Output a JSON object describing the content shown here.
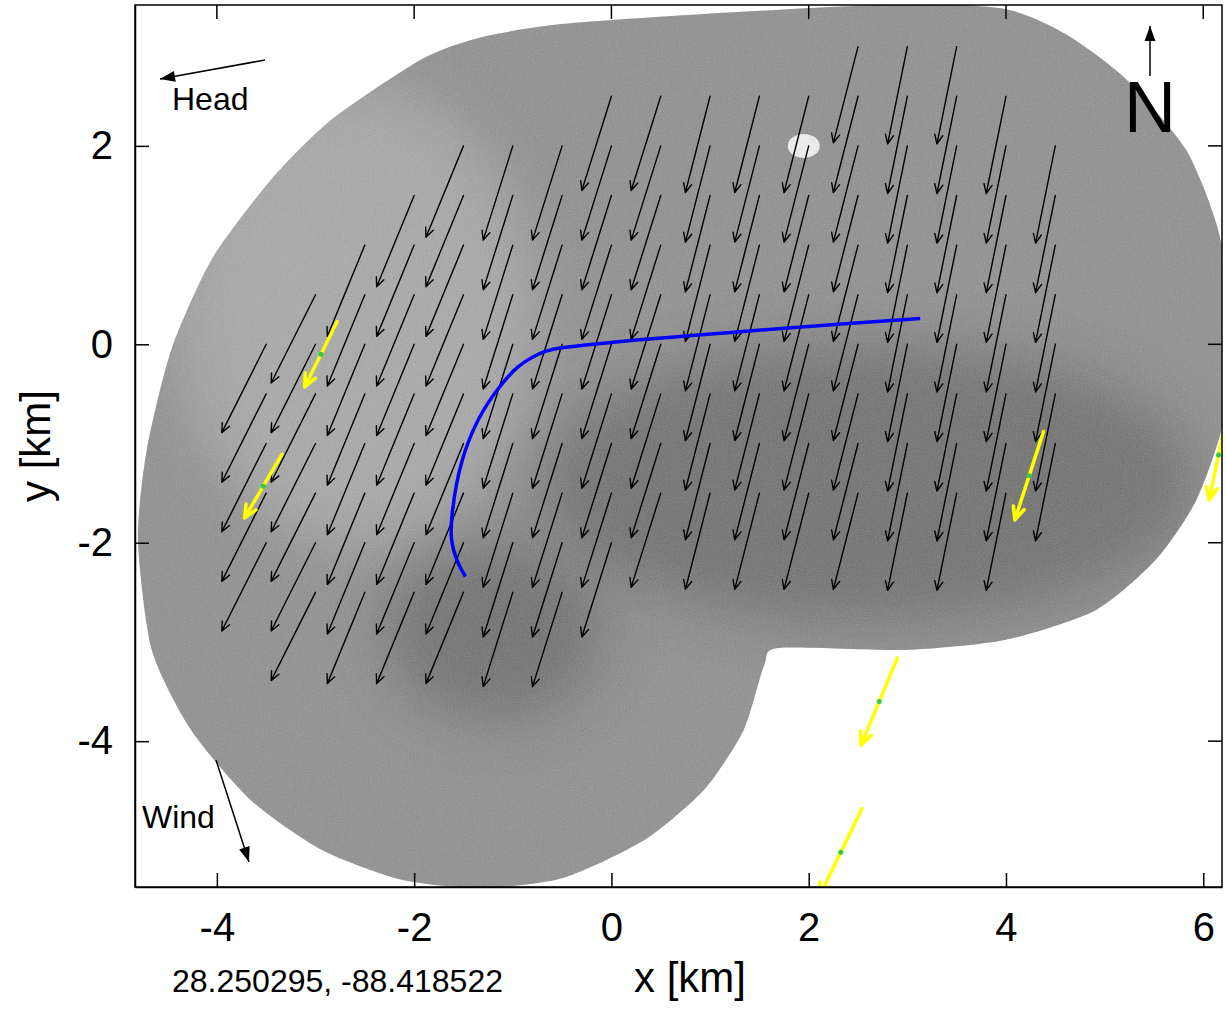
{
  "chart_data": {
    "type": "quiver",
    "xlabel": "x [km]",
    "ylabel": "y [km]",
    "xlim": [
      -4.83,
      6.19
    ],
    "ylim": [
      -5.47,
      3.42
    ],
    "xticks": [
      -4,
      -2,
      0,
      2,
      4,
      6
    ],
    "yticks": [
      -4,
      -2,
      0,
      2
    ],
    "grid": false,
    "heading_label": "Head",
    "wind_label": "Wind",
    "north_label": "N",
    "location_label": "28.250295, -88.418522",
    "series": [
      {
        "type": "quiver",
        "color": "#000000",
        "vectors": [
          [
            2.5,
            3,
            -0.25,
            -0.97
          ],
          [
            3,
            3,
            -0.2,
            -0.98
          ],
          [
            3.5,
            3,
            -0.2,
            -0.98
          ],
          [
            0,
            2.5,
            -0.3,
            -0.95
          ],
          [
            0.5,
            2.5,
            -0.3,
            -0.95
          ],
          [
            1,
            2.5,
            -0.25,
            -0.97
          ],
          [
            1.5,
            2.5,
            -0.25,
            -0.97
          ],
          [
            2,
            2.5,
            -0.25,
            -0.97
          ],
          [
            2.5,
            2.5,
            -0.25,
            -0.97
          ],
          [
            3,
            2.5,
            -0.2,
            -0.98
          ],
          [
            3.5,
            2.5,
            -0.2,
            -0.98
          ],
          [
            4,
            2.5,
            -0.2,
            -0.98
          ],
          [
            -1.5,
            2,
            -0.38,
            -0.92
          ],
          [
            -1,
            2,
            -0.3,
            -0.95
          ],
          [
            -0.5,
            2,
            -0.3,
            -0.95
          ],
          [
            0,
            2,
            -0.3,
            -0.95
          ],
          [
            0.5,
            2,
            -0.3,
            -0.95
          ],
          [
            1,
            2,
            -0.25,
            -0.97
          ],
          [
            1.5,
            2,
            -0.25,
            -0.97
          ],
          [
            2,
            2,
            -0.25,
            -0.97
          ],
          [
            2.5,
            2,
            -0.25,
            -0.97
          ],
          [
            3,
            2,
            -0.2,
            -0.98
          ],
          [
            3.5,
            2,
            -0.2,
            -0.98
          ],
          [
            4,
            2,
            -0.2,
            -0.98
          ],
          [
            4.5,
            2,
            -0.2,
            -0.98
          ],
          [
            -2,
            1.5,
            -0.38,
            -0.92
          ],
          [
            -1.5,
            1.5,
            -0.38,
            -0.92
          ],
          [
            -1,
            1.5,
            -0.3,
            -0.95
          ],
          [
            -0.5,
            1.5,
            -0.3,
            -0.95
          ],
          [
            0,
            1.5,
            -0.3,
            -0.95
          ],
          [
            0.5,
            1.5,
            -0.3,
            -0.95
          ],
          [
            1,
            1.5,
            -0.25,
            -0.97
          ],
          [
            1.5,
            1.5,
            -0.25,
            -0.97
          ],
          [
            2,
            1.5,
            -0.25,
            -0.97
          ],
          [
            2.5,
            1.5,
            -0.25,
            -0.97
          ],
          [
            3,
            1.5,
            -0.2,
            -0.98
          ],
          [
            3.5,
            1.5,
            -0.2,
            -0.98
          ],
          [
            4,
            1.5,
            -0.2,
            -0.98
          ],
          [
            4.5,
            1.5,
            -0.2,
            -0.98
          ],
          [
            -2.5,
            1,
            -0.38,
            -0.92
          ],
          [
            -2,
            1,
            -0.38,
            -0.92
          ],
          [
            -1.5,
            1,
            -0.38,
            -0.92
          ],
          [
            -1,
            1,
            -0.3,
            -0.95
          ],
          [
            -0.5,
            1,
            -0.3,
            -0.95
          ],
          [
            0,
            1,
            -0.3,
            -0.95
          ],
          [
            0.5,
            1,
            -0.3,
            -0.95
          ],
          [
            1,
            1,
            -0.25,
            -0.97
          ],
          [
            1.5,
            1,
            -0.25,
            -0.97
          ],
          [
            2,
            1,
            -0.25,
            -0.97
          ],
          [
            2.5,
            1,
            -0.25,
            -0.97
          ],
          [
            3,
            1,
            -0.2,
            -0.98
          ],
          [
            3.5,
            1,
            -0.2,
            -0.98
          ],
          [
            4,
            1,
            -0.2,
            -0.98
          ],
          [
            4.5,
            1,
            -0.2,
            -0.98
          ],
          [
            -3,
            0.5,
            -0.45,
            -0.89
          ],
          [
            -2.5,
            0.5,
            -0.38,
            -0.92
          ],
          [
            -2,
            0.5,
            -0.38,
            -0.92
          ],
          [
            -1.5,
            0.5,
            -0.38,
            -0.92
          ],
          [
            -1,
            0.5,
            -0.3,
            -0.95
          ],
          [
            -0.5,
            0.5,
            -0.3,
            -0.95
          ],
          [
            0,
            0.5,
            -0.3,
            -0.95
          ],
          [
            0.5,
            0.5,
            -0.3,
            -0.95
          ],
          [
            1,
            0.5,
            -0.25,
            -0.97
          ],
          [
            1.5,
            0.5,
            -0.25,
            -0.97
          ],
          [
            2,
            0.5,
            -0.25,
            -0.97
          ],
          [
            2.5,
            0.5,
            -0.25,
            -0.97
          ],
          [
            3,
            0.5,
            -0.2,
            -0.98
          ],
          [
            3.5,
            0.5,
            -0.2,
            -0.98
          ],
          [
            4,
            0.5,
            -0.2,
            -0.98
          ],
          [
            4.5,
            0.5,
            -0.2,
            -0.98
          ],
          [
            -3.5,
            0,
            -0.45,
            -0.89
          ],
          [
            -3,
            0,
            -0.45,
            -0.89
          ],
          [
            -2.5,
            0,
            -0.38,
            -0.92
          ],
          [
            -2,
            0,
            -0.38,
            -0.92
          ],
          [
            -1.5,
            0,
            -0.38,
            -0.92
          ],
          [
            -1,
            0,
            -0.3,
            -0.95
          ],
          [
            -0.5,
            0,
            -0.3,
            -0.95
          ],
          [
            0,
            0,
            -0.3,
            -0.95
          ],
          [
            0.5,
            0,
            -0.3,
            -0.95
          ],
          [
            1,
            0,
            -0.25,
            -0.97
          ],
          [
            1.5,
            0,
            -0.25,
            -0.97
          ],
          [
            2,
            0,
            -0.25,
            -0.97
          ],
          [
            2.5,
            0,
            -0.25,
            -0.97
          ],
          [
            3,
            0,
            -0.2,
            -0.98
          ],
          [
            3.5,
            0,
            -0.2,
            -0.98
          ],
          [
            4,
            0,
            -0.2,
            -0.98
          ],
          [
            4.5,
            0,
            -0.2,
            -0.98
          ],
          [
            -3.5,
            -0.5,
            -0.45,
            -0.89
          ],
          [
            -3,
            -0.5,
            -0.45,
            -0.89
          ],
          [
            -2.5,
            -0.5,
            -0.38,
            -0.92
          ],
          [
            -2,
            -0.5,
            -0.38,
            -0.92
          ],
          [
            -1.5,
            -0.5,
            -0.38,
            -0.92
          ],
          [
            -1,
            -0.5,
            -0.3,
            -0.95
          ],
          [
            -0.5,
            -0.5,
            -0.3,
            -0.95
          ],
          [
            0,
            -0.5,
            -0.3,
            -0.95
          ],
          [
            0.5,
            -0.5,
            -0.3,
            -0.95
          ],
          [
            1,
            -0.5,
            -0.25,
            -0.97
          ],
          [
            1.5,
            -0.5,
            -0.25,
            -0.97
          ],
          [
            2,
            -0.5,
            -0.25,
            -0.97
          ],
          [
            2.5,
            -0.5,
            -0.25,
            -0.97
          ],
          [
            3,
            -0.5,
            -0.2,
            -0.98
          ],
          [
            3.5,
            -0.5,
            -0.2,
            -0.98
          ],
          [
            4,
            -0.5,
            -0.2,
            -0.98
          ],
          [
            4.5,
            -0.5,
            -0.2,
            -0.98
          ],
          [
            -3.5,
            -1,
            -0.45,
            -0.89
          ],
          [
            -3,
            -1,
            -0.45,
            -0.89
          ],
          [
            -2.5,
            -1,
            -0.38,
            -0.92
          ],
          [
            -2,
            -1,
            -0.38,
            -0.92
          ],
          [
            -1.5,
            -1,
            -0.38,
            -0.92
          ],
          [
            -1,
            -1,
            -0.3,
            -0.95
          ],
          [
            -0.5,
            -1,
            -0.3,
            -0.95
          ],
          [
            0,
            -1,
            -0.3,
            -0.95
          ],
          [
            0.5,
            -1,
            -0.3,
            -0.95
          ],
          [
            1,
            -1,
            -0.25,
            -0.97
          ],
          [
            1.5,
            -1,
            -0.25,
            -0.97
          ],
          [
            2,
            -1,
            -0.25,
            -0.97
          ],
          [
            2.5,
            -1,
            -0.25,
            -0.97
          ],
          [
            3,
            -1,
            -0.2,
            -0.98
          ],
          [
            3.5,
            -1,
            -0.2,
            -0.98
          ],
          [
            4,
            -1,
            -0.2,
            -0.98
          ],
          [
            4.5,
            -1,
            -0.2,
            -0.98
          ],
          [
            -3.5,
            -1.5,
            -0.45,
            -0.89
          ],
          [
            -3,
            -1.5,
            -0.45,
            -0.89
          ],
          [
            -2.5,
            -1.5,
            -0.38,
            -0.92
          ],
          [
            -2,
            -1.5,
            -0.38,
            -0.92
          ],
          [
            -1.5,
            -1.5,
            -0.38,
            -0.92
          ],
          [
            -1,
            -1.5,
            -0.3,
            -0.95
          ],
          [
            -0.5,
            -1.5,
            -0.3,
            -0.95
          ],
          [
            0,
            -1.5,
            -0.3,
            -0.95
          ],
          [
            0.5,
            -1.5,
            -0.3,
            -0.95
          ],
          [
            1,
            -1.5,
            -0.25,
            -0.97
          ],
          [
            1.5,
            -1.5,
            -0.25,
            -0.97
          ],
          [
            2,
            -1.5,
            -0.25,
            -0.97
          ],
          [
            2.5,
            -1.5,
            -0.25,
            -0.97
          ],
          [
            3,
            -1.5,
            -0.2,
            -0.98
          ],
          [
            3.5,
            -1.5,
            -0.2,
            -0.98
          ],
          [
            4,
            -1.5,
            -0.2,
            -0.98
          ],
          [
            -3.5,
            -2,
            -0.45,
            -0.89
          ],
          [
            -3,
            -2,
            -0.45,
            -0.89
          ],
          [
            -2.5,
            -2,
            -0.38,
            -0.92
          ],
          [
            -2,
            -2,
            -0.38,
            -0.92
          ],
          [
            -1.5,
            -2,
            -0.38,
            -0.92
          ],
          [
            -1,
            -2,
            -0.3,
            -0.95
          ],
          [
            -0.5,
            -2,
            -0.3,
            -0.95
          ],
          [
            0,
            -2,
            -0.3,
            -0.95
          ],
          [
            -3,
            -2.5,
            -0.45,
            -0.89
          ],
          [
            -2.5,
            -2.5,
            -0.38,
            -0.92
          ],
          [
            -2,
            -2.5,
            -0.38,
            -0.92
          ],
          [
            -1.5,
            -2.5,
            -0.38,
            -0.92
          ],
          [
            -1,
            -2.5,
            -0.3,
            -0.95
          ],
          [
            -0.5,
            -2.5,
            -0.3,
            -0.95
          ]
        ]
      },
      {
        "type": "quiver",
        "color": "#ffff00",
        "marker": "dot",
        "vectors": [
          [
            -2.78,
            0.23,
            -0.33,
            -0.66
          ],
          [
            -3.34,
            -1.11,
            -0.38,
            -0.64
          ],
          [
            4.38,
            -0.88,
            -0.29,
            -0.89
          ],
          [
            6.25,
            -0.66,
            -0.19,
            -0.91
          ],
          [
            2.9,
            -3.16,
            -0.37,
            -0.88
          ],
          [
            2.54,
            -4.68,
            -0.43,
            -0.88
          ]
        ]
      },
      {
        "type": "line",
        "color": "#0000ff",
        "x": [
          3.13,
          -0.59,
          -0.74,
          -0.95,
          -1.15,
          -1.35,
          -1.51,
          -1.61,
          -1.62,
          -1.56,
          -1.48
        ],
        "y": [
          0.26,
          -0.05,
          -0.1,
          -0.23,
          -0.45,
          -0.76,
          -1.16,
          -1.67,
          -1.97,
          -2.19,
          -2.34
        ]
      }
    ]
  }
}
